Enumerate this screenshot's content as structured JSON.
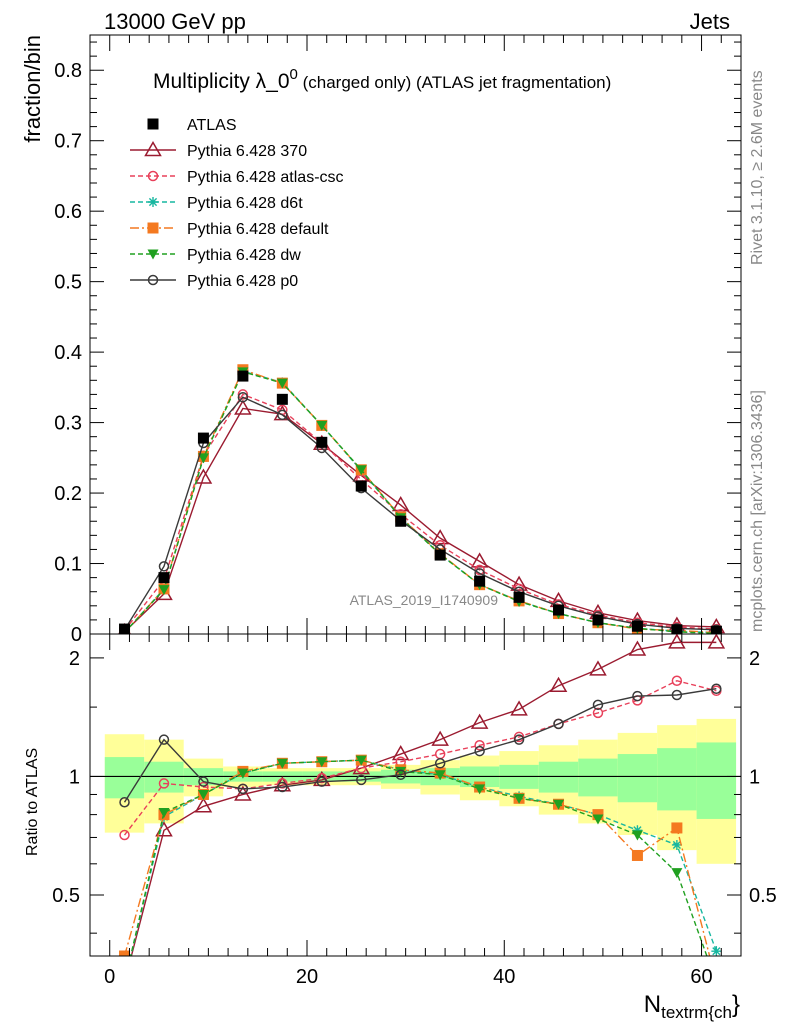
{
  "header": {
    "left": "13000 GeV pp",
    "right": "Jets"
  },
  "side_labels": {
    "rivet": "Rivet 3.1.10, ≥ 2.6M events",
    "mcplots": "mcplots.cern.ch [arXiv:1306.3436]"
  },
  "analysis_tag": "ATLAS_2019_I1740909",
  "title": {
    "main": "Multiplicity λ_0",
    "sup": "0",
    "sub": " (charged only) (ATLAS jet fragmentation)"
  },
  "xlabel": {
    "main": "N",
    "sub": "textrm{ch",
    "close": "}"
  },
  "chart_data": [
    {
      "type": "line",
      "panel": "main",
      "ylabel": "fraction/bin",
      "xlim": [
        -2,
        64
      ],
      "ylim": [
        0,
        0.85
      ],
      "xticks": [
        0,
        20,
        40,
        60
      ],
      "yticks": [
        0,
        0.1,
        0.2,
        0.3,
        0.4,
        0.5,
        0.6,
        0.7,
        0.8
      ],
      "ytick_labels": [
        "0",
        "0.1",
        "0.2",
        "0.3",
        "0.4",
        "0.5",
        "0.6",
        "0.7",
        "0.8"
      ],
      "x": [
        1.5,
        5.5,
        9.5,
        13.5,
        17.5,
        21.5,
        25.5,
        29.5,
        33.5,
        37.5,
        41.5,
        45.5,
        49.5,
        53.5,
        57.5,
        61.5
      ],
      "series": [
        {
          "name": "ATLAS",
          "color": "#000000",
          "marker": "square",
          "dash": "none",
          "values": [
            0.007,
            0.08,
            0.278,
            0.366,
            0.333,
            0.272,
            0.21,
            0.16,
            0.112,
            0.075,
            0.052,
            0.034,
            0.02,
            0.011,
            0.006,
            0.004
          ]
        },
        {
          "name": "Pythia 6.428 370",
          "color": "#9b1b30",
          "marker": "triangle-open",
          "dash": "none",
          "values": [
            0.003,
            0.057,
            0.222,
            0.32,
            0.312,
            0.27,
            0.225,
            0.183,
            0.136,
            0.103,
            0.07,
            0.047,
            0.03,
            0.019,
            0.012,
            0.01
          ]
        },
        {
          "name": "Pythia 6.428 atlas-csc",
          "color": "#e8405a",
          "marker": "circle-open",
          "dash": "5,3",
          "values": [
            0.005,
            0.077,
            0.253,
            0.34,
            0.318,
            0.271,
            0.219,
            0.17,
            0.126,
            0.091,
            0.064,
            0.042,
            0.027,
            0.016,
            0.01,
            0.007
          ]
        },
        {
          "name": "Pythia 6.428 d6t",
          "color": "#17b7a0",
          "marker": "star",
          "dash": "5,3",
          "values": [
            0.002,
            0.064,
            0.25,
            0.373,
            0.357,
            0.296,
            0.232,
            0.165,
            0.113,
            0.07,
            0.047,
            0.029,
            0.016,
            0.008,
            0.004,
            0.002
          ]
        },
        {
          "name": "Pythia 6.428 default",
          "color": "#f47920",
          "marker": "square",
          "dash": "9,3,2,3",
          "values": [
            0.002,
            0.064,
            0.252,
            0.375,
            0.356,
            0.296,
            0.233,
            0.166,
            0.114,
            0.07,
            0.047,
            0.029,
            0.016,
            0.007,
            0.005,
            0.002
          ]
        },
        {
          "name": "Pythia 6.428 dw",
          "color": "#20a020",
          "marker": "triangle-down",
          "dash": "5,3",
          "values": [
            0.002,
            0.063,
            0.25,
            0.372,
            0.356,
            0.296,
            0.233,
            0.165,
            0.113,
            0.07,
            0.046,
            0.029,
            0.016,
            0.008,
            0.003,
            0.001
          ]
        },
        {
          "name": "Pythia 6.428 p0",
          "color": "#3a3a3a",
          "marker": "circle-open",
          "dash": "none",
          "values": [
            0.006,
            0.096,
            0.271,
            0.336,
            0.311,
            0.264,
            0.207,
            0.161,
            0.12,
            0.086,
            0.06,
            0.04,
            0.025,
            0.014,
            0.008,
            0.006
          ]
        }
      ]
    },
    {
      "type": "line",
      "panel": "ratio",
      "ylabel": "Ratio to ATLAS",
      "xlim": [
        -2,
        64
      ],
      "ylim": [
        0.35,
        2.3
      ],
      "xticks": [
        0,
        20,
        40,
        60
      ],
      "xtick_labels": [
        "0",
        "20",
        "40",
        "60"
      ],
      "yticks": [
        0.5,
        1,
        2
      ],
      "ytick_labels": [
        "0.5",
        "1",
        "2"
      ],
      "reference_line": 1,
      "x": [
        1.5,
        5.5,
        9.5,
        13.5,
        17.5,
        21.5,
        25.5,
        29.5,
        33.5,
        37.5,
        41.5,
        45.5,
        49.5,
        53.5,
        57.5,
        61.5
      ],
      "bin_edges": [
        -0.5,
        3.5,
        7.5,
        11.5,
        15.5,
        19.5,
        23.5,
        27.5,
        31.5,
        35.5,
        39.5,
        43.5,
        47.5,
        51.5,
        55.5,
        59.5,
        63.5
      ],
      "band_stat": {
        "color": "#99ff99",
        "half_width": [
          0.12,
          0.09,
          0.05,
          0.03,
          0.03,
          0.03,
          0.03,
          0.04,
          0.05,
          0.06,
          0.07,
          0.09,
          0.11,
          0.14,
          0.18,
          0.22
        ]
      },
      "band_total": {
        "color": "#ffff99",
        "half_width": [
          0.28,
          0.24,
          0.11,
          0.06,
          0.05,
          0.05,
          0.05,
          0.07,
          0.1,
          0.13,
          0.16,
          0.2,
          0.24,
          0.29,
          0.35,
          0.4
        ]
      },
      "series": [
        {
          "name": "Pythia 6.428 370",
          "color": "#9b1b30",
          "marker": "triangle-open",
          "dash": "none",
          "values": [
            0.3,
            0.73,
            0.84,
            0.9,
            0.95,
            0.98,
            1.05,
            1.14,
            1.24,
            1.37,
            1.48,
            1.7,
            1.87,
            2.1,
            2.19,
            2.19
          ]
        },
        {
          "name": "Pythia 6.428 atlas-csc",
          "color": "#e8405a",
          "marker": "circle-open",
          "dash": "5,3",
          "values": [
            0.71,
            0.96,
            0.94,
            0.93,
            0.96,
            0.99,
            1.05,
            1.09,
            1.14,
            1.2,
            1.26,
            1.36,
            1.45,
            1.56,
            1.75,
            1.65
          ]
        },
        {
          "name": "Pythia 6.428 d6t",
          "color": "#17b7a0",
          "marker": "star",
          "dash": "5,3",
          "values": [
            0.3,
            0.79,
            0.9,
            1.02,
            1.08,
            1.09,
            1.1,
            1.04,
            1.01,
            0.94,
            0.89,
            0.85,
            0.8,
            0.73,
            0.67,
            0.36
          ]
        },
        {
          "name": "Pythia 6.428 default",
          "color": "#f47920",
          "marker": "square",
          "dash": "9,3,2,3",
          "values": [
            0.35,
            0.8,
            0.9,
            1.03,
            1.08,
            1.09,
            1.1,
            1.04,
            1.02,
            0.94,
            0.88,
            0.85,
            0.8,
            0.63,
            0.74,
            0.3
          ]
        },
        {
          "name": "Pythia 6.428 dw",
          "color": "#20a020",
          "marker": "triangle-down",
          "dash": "5,3",
          "values": [
            0.3,
            0.81,
            0.9,
            1.02,
            1.08,
            1.09,
            1.1,
            1.03,
            1.01,
            0.93,
            0.88,
            0.85,
            0.78,
            0.71,
            0.57,
            0.3
          ]
        },
        {
          "name": "Pythia 6.428 p0",
          "color": "#3a3a3a",
          "marker": "circle-open",
          "dash": "none",
          "values": [
            0.86,
            1.24,
            0.97,
            0.93,
            0.94,
            0.97,
            0.98,
            1.01,
            1.08,
            1.16,
            1.24,
            1.36,
            1.52,
            1.6,
            1.61,
            1.67
          ]
        }
      ]
    }
  ]
}
